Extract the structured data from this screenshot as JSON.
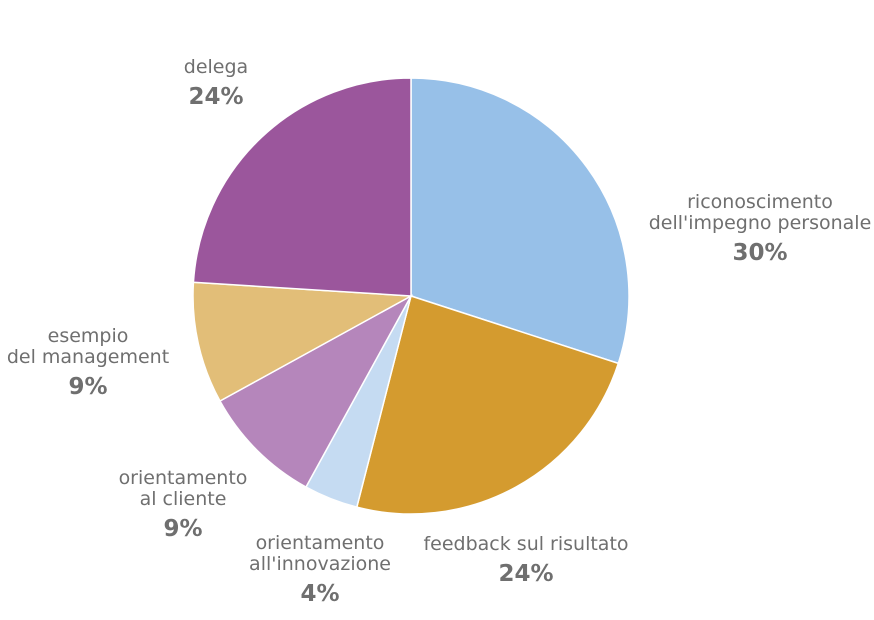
{
  "chart_data": {
    "type": "pie",
    "start_angle_deg": 0,
    "direction": "clockwise",
    "slices": [
      {
        "name_lines": [
          "riconoscimento",
          "dell'impegno personale"
        ],
        "value": 30,
        "value_label": "30%",
        "color": "#97c0e8"
      },
      {
        "name_lines": [
          "feedback sul risultato"
        ],
        "value": 24,
        "value_label": "24%",
        "color": "#d49b2f"
      },
      {
        "name_lines": [
          "orientamento",
          "all'innovazione"
        ],
        "value": 4,
        "value_label": "4%",
        "color": "#c5dbf2"
      },
      {
        "name_lines": [
          "orientamento",
          "al cliente"
        ],
        "value": 9,
        "value_label": "9%",
        "color": "#b586bb"
      },
      {
        "name_lines": [
          "esempio",
          "del management"
        ],
        "value": 9,
        "value_label": "9%",
        "color": "#e2be78"
      },
      {
        "name_lines": [
          "delega"
        ],
        "value": 24,
        "value_label": "24%",
        "color": "#9b569c"
      }
    ]
  }
}
